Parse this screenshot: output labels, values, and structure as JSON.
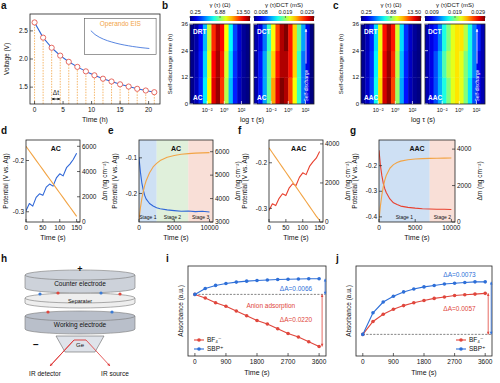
{
  "chart_data": [
    {
      "type": "line",
      "title": "a",
      "x_label": "Time (h)",
      "y_label": "Voltage (V)",
      "xlim": [
        -0.8,
        22
      ],
      "xticks": [
        0,
        5,
        10,
        15,
        20
      ],
      "ylim": [
        1.2,
        2.8
      ],
      "yticks": [
        1.5,
        {
          "value": 2,
          "label": "2.0"
        },
        2.5
      ],
      "x": [
        0,
        1.5,
        3,
        4.5,
        6,
        7.5,
        9,
        10.5,
        12,
        13.5,
        15,
        16.5,
        18,
        19.5,
        21
      ],
      "series": [
        {
          "color": "#2f67d8",
          "marker": "circle",
          "values": [
            2.65,
            2.38,
            2.2,
            2.06,
            1.95,
            1.86,
            1.78,
            1.71,
            1.65,
            1.6,
            1.55,
            1.51,
            1.47,
            1.44,
            1.41
          ]
        }
      ],
      "annotations": [
        "Operando EIS",
        "Δt"
      ]
    },
    {
      "type": "heatmap",
      "title": "b",
      "x_label": "log τ (s)",
      "y_label": "Self-discharge time (h)",
      "xlim": [
        -4,
        3
      ],
      "xticks": [
        {
          "value": -2,
          "label": "10⁻²"
        },
        {
          "value": 0,
          "label": "10⁰"
        },
        {
          "value": 2,
          "label": "10²"
        }
      ],
      "ylim": [
        0,
        36
      ],
      "yticks": [
        0,
        12,
        24,
        36
      ],
      "x_bins": [
        -4,
        -3.5,
        -3,
        -2.5,
        -2,
        -1.5,
        -1,
        -0.5,
        0,
        0.5,
        1,
        1.5,
        2,
        2.5,
        3
      ],
      "y_bins": [
        0,
        12,
        24,
        36
      ],
      "cells": [
        [
          0.4,
          1.0,
          2.4,
          5.0,
          8.6,
          12.2,
          13.2,
          11.2,
          7.6,
          4.4,
          2.3,
          1.1,
          0.5,
          0.3
        ],
        [
          0.4,
          0.9,
          2.2,
          4.7,
          8.2,
          11.8,
          13.0,
          11.5,
          8.0,
          4.8,
          2.5,
          1.2,
          0.6,
          0.3
        ],
        [
          0.3,
          0.8,
          2.0,
          4.3,
          7.8,
          11.3,
          12.8,
          11.8,
          8.5,
          5.2,
          2.8,
          1.3,
          0.6,
          0.3
        ]
      ],
      "colorbar_label": "γ (τ) (Ω)",
      "colorbar_range": [
        0.25,
        13.5
      ],
      "colorbar_ticks": [
        0.25,
        6.88,
        {
          "value": 13.5,
          "label": "13.50"
        }
      ],
      "annotations": [
        "DRT",
        "AC"
      ]
    },
    {
      "type": "heatmap",
      "tick_labels": "x",
      "xlim": [
        -4,
        3
      ],
      "xticks": [
        {
          "value": -2,
          "label": "10⁻²"
        },
        {
          "value": 0,
          "label": "10⁰"
        },
        {
          "value": 2,
          "label": "10²"
        }
      ],
      "ylim": [
        0,
        36
      ],
      "yticks": [
        0,
        12,
        24,
        36
      ],
      "x_bins": [
        -4,
        -3.5,
        -3,
        -2.5,
        -2,
        -1.5,
        -1,
        -0.5,
        0,
        0.5,
        1,
        1.5,
        2,
        2.5,
        3
      ],
      "y_bins": [
        0,
        12,
        24,
        36
      ],
      "cells": [
        [
          0.009,
          0.011,
          0.014,
          0.018,
          0.023,
          0.027,
          0.029,
          0.028,
          0.025,
          0.021,
          0.017,
          0.013,
          0.01,
          0.008
        ],
        [
          0.009,
          0.011,
          0.014,
          0.018,
          0.022,
          0.026,
          0.028,
          0.028,
          0.026,
          0.022,
          0.017,
          0.013,
          0.01,
          0.008
        ],
        [
          0.009,
          0.01,
          0.013,
          0.017,
          0.021,
          0.025,
          0.028,
          0.029,
          0.026,
          0.022,
          0.018,
          0.014,
          0.01,
          0.008
        ]
      ],
      "colorbar_label": "γ (τ)DCT (mS)",
      "colorbar_range": [
        0.008,
        0.029
      ],
      "colorbar_ticks": [
        0.008,
        0.019,
        0.029
      ],
      "annotations": [
        "DCT",
        "AC",
        "Self-discharge"
      ]
    },
    {
      "type": "heatmap",
      "title": "c",
      "x_label": "log τ (s)",
      "y_label": "Self-discharge time (h)",
      "xlim": [
        -4,
        3
      ],
      "xticks": [
        {
          "value": -2,
          "label": "10⁻²"
        },
        {
          "value": 0,
          "label": "10⁰"
        },
        {
          "value": 2,
          "label": "10²"
        }
      ],
      "ylim": [
        0,
        36
      ],
      "yticks": [
        0,
        12,
        24,
        36
      ],
      "x_bins": [
        -4,
        -3.5,
        -3,
        -2.5,
        -2,
        -1.5,
        -1,
        -0.5,
        0,
        0.5,
        1,
        1.5,
        2,
        2.5,
        3
      ],
      "y_bins": [
        0,
        12,
        24,
        36
      ],
      "cells": [
        [
          0.5,
          1.2,
          2.7,
          5.4,
          9.0,
          12.4,
          13.3,
          11.0,
          7.2,
          4.1,
          2.1,
          1.0,
          0.5,
          0.3
        ],
        [
          0.5,
          1.1,
          2.5,
          5.1,
          8.7,
          12.1,
          13.2,
          11.3,
          7.6,
          4.4,
          2.3,
          1.1,
          0.5,
          0.3
        ],
        [
          0.4,
          1.0,
          2.3,
          4.8,
          8.3,
          11.7,
          13.0,
          11.6,
          8.0,
          4.8,
          2.5,
          1.2,
          0.6,
          0.3
        ]
      ],
      "colorbar_label": "γ (τ) (Ω)",
      "colorbar_range": [
        0.25,
        13.5
      ],
      "colorbar_ticks": [
        0.25,
        6.88,
        {
          "value": 13.5,
          "label": "13.50"
        }
      ],
      "annotations": [
        "DRT",
        "AAC"
      ]
    },
    {
      "type": "heatmap",
      "tick_labels": "x",
      "xlim": [
        -4,
        3
      ],
      "xticks": [
        {
          "value": -2,
          "label": "10⁻²"
        },
        {
          "value": 0,
          "label": "10⁰"
        },
        {
          "value": 2,
          "label": "10²"
        }
      ],
      "ylim": [
        0,
        36
      ],
      "yticks": [
        0,
        12,
        24,
        36
      ],
      "x_bins": [
        -4,
        -3.5,
        -3,
        -2.5,
        -2,
        -1.5,
        -1,
        -0.5,
        0,
        0.5,
        1,
        1.5,
        2,
        2.5,
        3
      ],
      "y_bins": [
        0,
        12,
        24,
        36
      ],
      "cells": [
        [
          0.01,
          0.011,
          0.013,
          0.015,
          0.017,
          0.019,
          0.021,
          0.022,
          0.021,
          0.019,
          0.016,
          0.013,
          0.011,
          0.01
        ],
        [
          0.01,
          0.011,
          0.013,
          0.015,
          0.018,
          0.02,
          0.021,
          0.022,
          0.021,
          0.019,
          0.017,
          0.014,
          0.011,
          0.01
        ],
        [
          0.01,
          0.011,
          0.012,
          0.014,
          0.017,
          0.019,
          0.021,
          0.022,
          0.022,
          0.02,
          0.017,
          0.014,
          0.012,
          0.01
        ]
      ],
      "colorbar_label": "γ (τ)DCT (mS)",
      "colorbar_range": [
        0.009,
        0.029
      ],
      "colorbar_ticks": [
        0.009,
        0.019,
        0.029
      ],
      "annotations": [
        "DCT",
        "AAC",
        "Self-discharge"
      ]
    },
    {
      "type": "line",
      "title": "d",
      "x_label": "Time (s)",
      "y_label": "Potential (V vs. Ag)",
      "y2_label": "Δm (ng cm⁻²)",
      "xlim": [
        0,
        160
      ],
      "xticks": [
        0,
        50,
        100,
        150
      ],
      "ylim": [
        -0.32,
        -0.16
      ],
      "yticks": [
        -0.3,
        -0.2
      ],
      "y2lim": [
        0,
        6500
      ],
      "y2ticks": [
        0,
        2000,
        4000,
        6000
      ],
      "x": [
        0,
        10,
        20,
        30,
        40,
        50,
        60,
        70,
        80,
        90,
        100,
        110,
        120,
        130,
        140,
        150
      ],
      "series": [
        {
          "color": "#2f67d8",
          "values": [
            -0.298,
            -0.284,
            -0.289,
            -0.272,
            -0.265,
            -0.268,
            -0.252,
            -0.246,
            -0.25,
            -0.234,
            -0.226,
            -0.23,
            -0.214,
            -0.207,
            -0.198,
            -0.186
          ]
        },
        {
          "color": "#f2a445",
          "axis": "y2",
          "values": [
            6000,
            5630,
            5260,
            4890,
            4520,
            4150,
            3780,
            3410,
            3040,
            2670,
            2300,
            1930,
            1560,
            1190,
            820,
            450
          ]
        }
      ],
      "annotations": [
        "AC"
      ]
    },
    {
      "type": "line",
      "title": "e",
      "x_label": "Time (s)",
      "y_label": "Potential (V vs. Ag)",
      "y2_label": "Δm (ng cm⁻²)",
      "xlim": [
        0,
        10500
      ],
      "xticks": [
        0,
        5000,
        10000
      ],
      "ylim": [
        -0.28,
        -0.05
      ],
      "yticks": [
        -0.2,
        -0.1
      ],
      "y2lim": [
        3000,
        6500
      ],
      "y2ticks": [
        3000,
        4000,
        5000,
        6000
      ],
      "x": [
        0,
        200,
        400,
        600,
        800,
        1000,
        1500,
        2000,
        2500,
        3000,
        4000,
        5000,
        6000,
        7000,
        8000,
        9000,
        10000
      ],
      "series": [
        {
          "color": "#2f67d8",
          "values": [
            -0.1,
            -0.14,
            -0.17,
            -0.19,
            -0.205,
            -0.215,
            -0.228,
            -0.235,
            -0.24,
            -0.243,
            -0.246,
            -0.248,
            -0.25,
            -0.249,
            -0.251,
            -0.25,
            -0.252
          ]
        },
        {
          "color": "#f2a445",
          "axis": "y2",
          "values": [
            3100,
            3600,
            4000,
            4300,
            4550,
            4750,
            5100,
            5350,
            5500,
            5620,
            5760,
            5840,
            5890,
            5920,
            5940,
            5950,
            5960
          ]
        }
      ],
      "stages": [
        {
          "label": "Stage 1",
          "start": 0,
          "end": 2500,
          "color": "#b9d3f0"
        },
        {
          "label": "Stage 2",
          "start": 2500,
          "end": 7000,
          "color": "#d3e9cc"
        },
        {
          "label": "Stage 3",
          "start": 7000,
          "end": 10500,
          "color": "#f6d2c6"
        }
      ],
      "annotations": [
        "AC"
      ]
    },
    {
      "type": "line",
      "title": "f",
      "x_label": "Time (s)",
      "y_label": "Potential (V vs. Ag)",
      "y2_label": "Δm (ng cm⁻²)",
      "xlim": [
        0,
        160
      ],
      "xticks": [
        0,
        50,
        100,
        150
      ],
      "ylim": [
        -0.33,
        -0.15
      ],
      "yticks": [
        -0.3,
        -0.2
      ],
      "y2lim": [
        0,
        4200
      ],
      "y2ticks": [
        0,
        2000,
        4000
      ],
      "x": [
        0,
        10,
        20,
        30,
        40,
        50,
        60,
        70,
        80,
        90,
        100,
        110,
        120,
        130,
        140,
        150
      ],
      "series": [
        {
          "color": "#e8412f",
          "values": [
            -0.305,
            -0.29,
            -0.294,
            -0.278,
            -0.268,
            -0.272,
            -0.255,
            -0.246,
            -0.25,
            -0.232,
            -0.222,
            -0.226,
            -0.208,
            -0.198,
            -0.19,
            -0.175
          ]
        },
        {
          "color": "#f2a445",
          "axis": "y2",
          "values": [
            3800,
            3550,
            3300,
            3050,
            2800,
            2550,
            2300,
            2050,
            1800,
            1550,
            1300,
            1050,
            800,
            550,
            300,
            80
          ]
        }
      ],
      "annotations": [
        "AAC"
      ]
    },
    {
      "type": "line",
      "title": "g",
      "x_label": "Time (s)",
      "y_label": "Potential (V vs. Ag)",
      "y2_label": "Δm (ng cm⁻²)",
      "xlim": [
        0,
        10500
      ],
      "xticks": [
        0,
        5000,
        10000
      ],
      "ylim": [
        -0.42,
        -0.1
      ],
      "yticks": [
        -0.4,
        -0.3,
        -0.2
      ],
      "y2lim": [
        0,
        4500
      ],
      "y2ticks": [
        0,
        2000,
        4000
      ],
      "x": [
        0,
        200,
        400,
        600,
        800,
        1000,
        1500,
        2000,
        2500,
        3000,
        4000,
        5000,
        6000,
        7000,
        8000,
        9000,
        10000
      ],
      "series": [
        {
          "color": "#e8412f",
          "values": [
            -0.14,
            -0.2,
            -0.24,
            -0.27,
            -0.29,
            -0.305,
            -0.33,
            -0.345,
            -0.352,
            -0.358,
            -0.363,
            -0.366,
            -0.368,
            -0.369,
            -0.37,
            -0.37,
            -0.371
          ]
        },
        {
          "color": "#f2a445",
          "axis": "y2",
          "values": [
            100,
            900,
            1500,
            1950,
            2300,
            2550,
            2950,
            3150,
            3270,
            3340,
            3420,
            3460,
            3480,
            3490,
            3500,
            3505,
            3510
          ]
        }
      ],
      "stages": [
        {
          "label": "Stage 1",
          "start": 0,
          "end": 7000,
          "color": "#b9d3f0"
        },
        {
          "label": "Stage 2",
          "start": 7000,
          "end": 10500,
          "color": "#f6d2c6"
        }
      ],
      "annotations": [
        "AAC"
      ]
    },
    {
      "type": "line",
      "title": "i",
      "x_label": "Time (s)",
      "y_label": "Absorbance (a.u.)",
      "tick_labels": "x",
      "legend": "lower left",
      "xlim": [
        -200,
        3800
      ],
      "xticks": [
        0,
        900,
        1800,
        2700,
        3600
      ],
      "ylim": [
        -0.026,
        0.012
      ],
      "x": [
        0,
        300,
        600,
        900,
        1200,
        1500,
        1800,
        2100,
        2400,
        2700,
        3000,
        3300,
        3600
      ],
      "series": [
        {
          "name": "BF₄⁻",
          "color": "#e0463c",
          "marker": "circle",
          "values": [
            0,
            -0.0015,
            -0.0035,
            -0.005,
            -0.007,
            -0.009,
            -0.011,
            -0.0125,
            -0.0145,
            -0.0165,
            -0.018,
            -0.02,
            -0.022
          ]
        },
        {
          "name": "SBP⁺",
          "color": "#2e6fd8",
          "marker": "circle",
          "values": [
            0,
            0.0025,
            0.0038,
            0.0046,
            0.0052,
            0.0056,
            0.0059,
            0.0061,
            0.0063,
            0.0064,
            0.0065,
            0.0066,
            0.0066
          ]
        }
      ],
      "annotations": [
        "ΔA=0.0066",
        "Anion adsorption",
        "ΔA=0.0220"
      ]
    },
    {
      "type": "line",
      "title": "j",
      "x_label": "Time (s)",
      "y_label": "Absorbance (a.u.)",
      "tick_labels": "x",
      "legend": "lower right",
      "xlim": [
        -200,
        3800
      ],
      "xticks": [
        0,
        900,
        1800,
        2700,
        3600
      ],
      "ylim": [
        -0.003,
        0.0095
      ],
      "x": [
        0,
        300,
        600,
        900,
        1200,
        1500,
        1800,
        2100,
        2400,
        2700,
        3000,
        3300,
        3600
      ],
      "series": [
        {
          "name": "BF₄⁻",
          "color": "#e0463c",
          "marker": "circle",
          "values": [
            0,
            0.0018,
            0.0028,
            0.0035,
            0.004,
            0.0044,
            0.0047,
            0.005,
            0.0052,
            0.0054,
            0.0055,
            0.0056,
            0.0057
          ]
        },
        {
          "name": "SBP⁺",
          "color": "#2e6fd8",
          "marker": "circle",
          "values": [
            0,
            0.003,
            0.0045,
            0.0053,
            0.0059,
            0.0063,
            0.0066,
            0.0068,
            0.007,
            0.0071,
            0.0072,
            0.0073,
            0.0073
          ]
        }
      ],
      "annotations": [
        "ΔA=0.0073",
        "ΔA=0.0057"
      ]
    }
  ],
  "diagram": {
    "title": "h",
    "plus": "+",
    "counter": "Counter electrode",
    "separator": "Separater",
    "working": "Working electrode",
    "minus": "−",
    "crystal": "Ge",
    "detector": "IR detector",
    "source": "IR source"
  }
}
